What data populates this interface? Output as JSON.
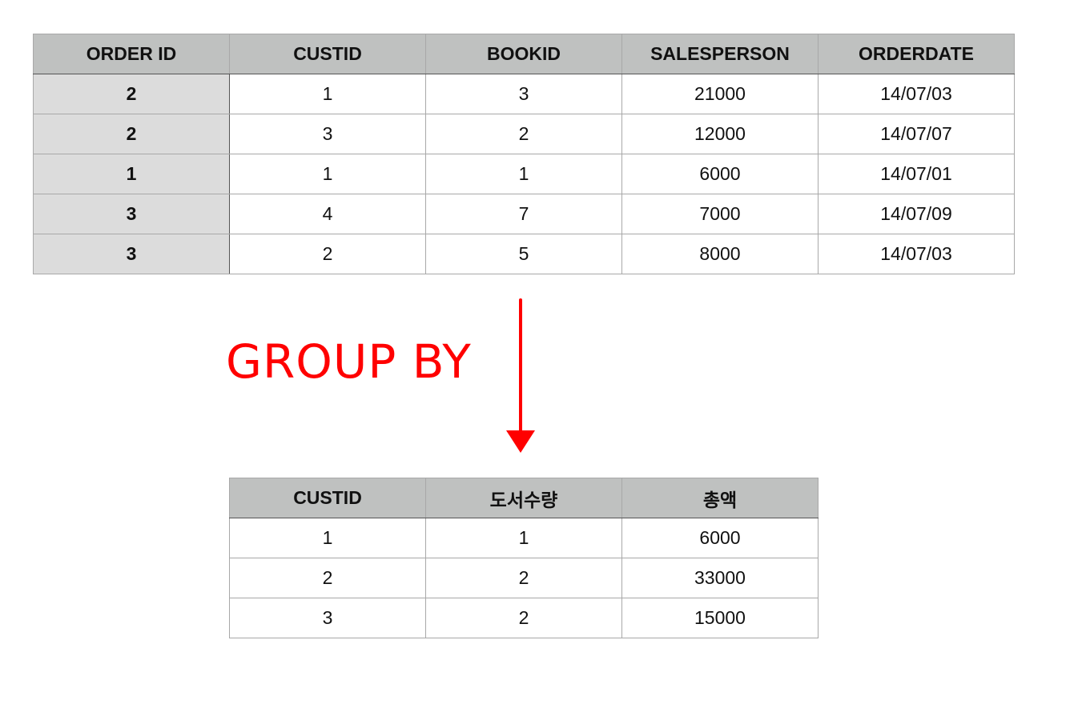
{
  "orders_table": {
    "headers": [
      "ORDER ID",
      "CUSTID",
      "BOOKID",
      "SALESPERSON",
      "ORDERDATE"
    ],
    "rows": [
      [
        "2",
        "1",
        "3",
        "21000",
        "14/07/03"
      ],
      [
        "2",
        "3",
        "2",
        "12000",
        "14/07/07"
      ],
      [
        "1",
        "1",
        "1",
        "6000",
        "14/07/01"
      ],
      [
        "3",
        "4",
        "7",
        "7000",
        "14/07/09"
      ],
      [
        "3",
        "2",
        "5",
        "8000",
        "14/07/03"
      ]
    ]
  },
  "operation": {
    "label": "GROUP BY",
    "color": "#ff0000"
  },
  "grouped_table": {
    "headers": [
      "CUSTID",
      "도서수량",
      "총액"
    ],
    "rows": [
      [
        "1",
        "1",
        "6000"
      ],
      [
        "2",
        "2",
        "33000"
      ],
      [
        "3",
        "2",
        "15000"
      ]
    ]
  }
}
